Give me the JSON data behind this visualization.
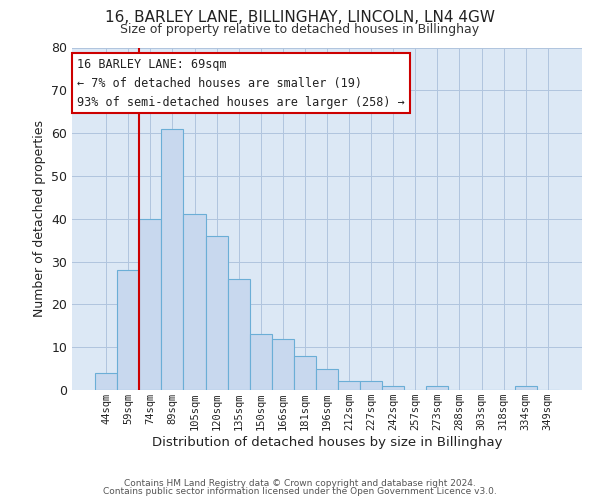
{
  "title": "16, BARLEY LANE, BILLINGHAY, LINCOLN, LN4 4GW",
  "subtitle": "Size of property relative to detached houses in Billinghay",
  "xlabel": "Distribution of detached houses by size in Billinghay",
  "ylabel": "Number of detached properties",
  "bar_labels": [
    "44sqm",
    "59sqm",
    "74sqm",
    "89sqm",
    "105sqm",
    "120sqm",
    "135sqm",
    "150sqm",
    "166sqm",
    "181sqm",
    "196sqm",
    "212sqm",
    "227sqm",
    "242sqm",
    "257sqm",
    "273sqm",
    "288sqm",
    "303sqm",
    "318sqm",
    "334sqm",
    "349sqm"
  ],
  "bar_heights": [
    4,
    28,
    40,
    61,
    41,
    36,
    26,
    13,
    12,
    8,
    5,
    2,
    2,
    1,
    0,
    1,
    0,
    0,
    0,
    1,
    0
  ],
  "bar_color": "#c8d8ee",
  "bar_edge_color": "#6baed6",
  "vline_color": "#cc0000",
  "vline_x": 1.5,
  "ylim": [
    0,
    80
  ],
  "yticks": [
    0,
    10,
    20,
    30,
    40,
    50,
    60,
    70,
    80
  ],
  "annotation_title": "16 BARLEY LANE: 69sqm",
  "annotation_line1": "← 7% of detached houses are smaller (19)",
  "annotation_line2": "93% of semi-detached houses are larger (258) →",
  "annotation_box_color": "#ffffff",
  "annotation_box_edge": "#cc0000",
  "footer1": "Contains HM Land Registry data © Crown copyright and database right 2024.",
  "footer2": "Contains public sector information licensed under the Open Government Licence v3.0.",
  "background_color": "#ffffff",
  "plot_bg_color": "#dce8f5",
  "grid_color": "#b0c4de"
}
